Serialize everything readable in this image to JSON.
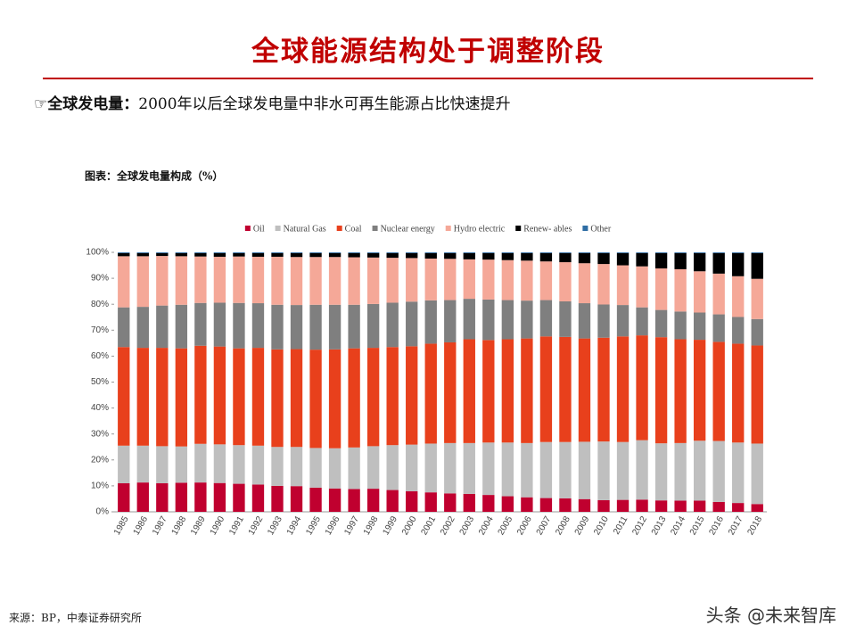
{
  "header": {
    "title": "全球能源结构处于调整阶段",
    "bullet_icon": "☞",
    "bullet_label": "全球发电量：",
    "bullet_text": "2000年以后全球发电量中非水可再生能源占比快速提升"
  },
  "source": "来源：BP，中泰证券研究所",
  "watermark": "头条 @未来智库",
  "chart_data": {
    "type": "stacked_bar",
    "title": "图表：全球发电量构成（%）",
    "categories": [
      "1985",
      "1986",
      "1987",
      "1988",
      "1989",
      "1990",
      "1991",
      "1992",
      "1993",
      "1994",
      "1995",
      "1996",
      "1997",
      "1998",
      "1999",
      "2000",
      "2001",
      "2002",
      "2003",
      "2004",
      "2005",
      "2006",
      "2007",
      "2008",
      "2009",
      "2010",
      "2011",
      "2012",
      "2013",
      "2014",
      "2015",
      "2016",
      "2017",
      "2018"
    ],
    "series": [
      {
        "name": "Oil",
        "color": "#c0002f",
        "values": [
          11,
          11.3,
          11,
          11.2,
          11.3,
          11.1,
          10.8,
          10.5,
          10,
          9.9,
          9.3,
          9,
          8.8,
          8.9,
          8.4,
          7.9,
          7.5,
          7.1,
          6.9,
          6.5,
          6,
          5.6,
          5.3,
          5.2,
          4.9,
          4.5,
          4.6,
          4.7,
          4.4,
          4.3,
          4.3,
          3.8,
          3.4,
          3.0
        ]
      },
      {
        "name": "Natural Gas",
        "color": "#bfbfbf",
        "values": [
          14.5,
          14.2,
          14.3,
          14,
          14.9,
          14.9,
          14.9,
          15,
          15,
          15.1,
          15.3,
          15.5,
          16,
          16.4,
          17.3,
          18,
          18.8,
          19.4,
          19.6,
          20.2,
          20.7,
          20.9,
          21.6,
          21.7,
          22.1,
          22.6,
          22.3,
          22.9,
          22,
          22.2,
          23.1,
          23.5,
          23.3,
          23.3
        ]
      },
      {
        "name": "Coal",
        "color": "#e8401c",
        "values": [
          38,
          37.7,
          37.9,
          37.8,
          37.8,
          37.7,
          37.3,
          37.7,
          37.6,
          37.7,
          37.9,
          38.1,
          38.2,
          37.9,
          37.8,
          37.9,
          38.5,
          38.8,
          40,
          39.5,
          39.8,
          40.3,
          40.7,
          40.5,
          39.8,
          40,
          40.7,
          40.4,
          40.9,
          40,
          38.9,
          38.2,
          38.1,
          37.8
        ]
      },
      {
        "name": "Nuclear energy",
        "color": "#7f7f7f",
        "values": [
          15.3,
          15.8,
          16.3,
          16.8,
          16.5,
          16.9,
          17.5,
          17.2,
          17.2,
          17,
          17.3,
          17.2,
          16.8,
          16.9,
          17.1,
          17.2,
          16.7,
          16.3,
          15.6,
          15.6,
          15.1,
          14.6,
          14,
          13.7,
          13.6,
          12.8,
          12.1,
          10.8,
          10.5,
          10.7,
          10.5,
          10.6,
          10.3,
          10.2
        ]
      },
      {
        "name": "Hydro electric",
        "color": "#f5a898",
        "values": [
          19.7,
          19.5,
          19.1,
          18.7,
          17.9,
          17.7,
          17.9,
          17.9,
          18.5,
          18.5,
          18.4,
          18.4,
          18.3,
          17.9,
          17.3,
          16.8,
          16.1,
          15.9,
          15.2,
          15.4,
          15.4,
          15.4,
          14.9,
          15.1,
          15.4,
          15.6,
          15.3,
          15.8,
          16,
          16.3,
          15.9,
          15.7,
          15.7,
          15.5
        ]
      },
      {
        "name": "Renew- ables",
        "color": "#000000",
        "values": [
          1.2,
          1.2,
          1.1,
          1.2,
          1.3,
          1.4,
          1.3,
          1.4,
          1.4,
          1.5,
          1.5,
          1.5,
          1.6,
          1.7,
          1.8,
          1.9,
          2.1,
          2.2,
          2.4,
          2.5,
          2.7,
          2.9,
          3.2,
          3.5,
          3.9,
          4.2,
          4.7,
          5.1,
          5.9,
          6.2,
          7,
          7.9,
          8.9,
          9.9
        ]
      },
      {
        "name": "Other",
        "color": "#2e6da4",
        "values": [
          0.3,
          0.3,
          0.3,
          0.3,
          0.3,
          0.3,
          0.3,
          0.3,
          0.3,
          0.3,
          0.3,
          0.3,
          0.3,
          0.3,
          0.3,
          0.3,
          0.3,
          0.3,
          0.3,
          0.3,
          0.3,
          0.3,
          0.3,
          0.3,
          0.3,
          0.3,
          0.3,
          0.3,
          0.3,
          0.3,
          0.3,
          0.3,
          0.3,
          0.3
        ]
      }
    ],
    "ylim": [
      0,
      100
    ],
    "yticks": [
      {
        "value": 0,
        "label": "0%"
      },
      {
        "value": 10,
        "label": "10%"
      },
      {
        "value": 20,
        "label": "20%"
      },
      {
        "value": 30,
        "label": "30%"
      },
      {
        "value": 40,
        "label": "40%"
      },
      {
        "value": 50,
        "label": "50%"
      },
      {
        "value": 60,
        "label": "60%"
      },
      {
        "value": 70,
        "label": "70%"
      },
      {
        "value": 80,
        "label": "80%"
      },
      {
        "value": 90,
        "label": "90%"
      },
      {
        "value": 100,
        "label": "100%"
      }
    ],
    "legend": "top"
  }
}
